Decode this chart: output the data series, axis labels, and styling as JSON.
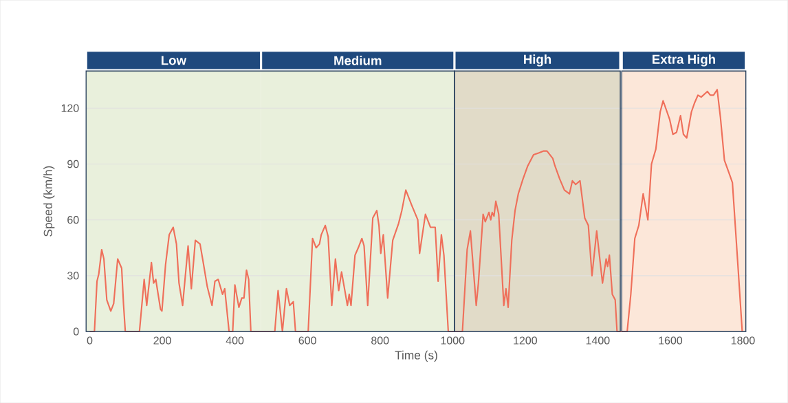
{
  "chart_data": {
    "type": "line",
    "xlabel": "Time (s)",
    "ylabel": "Speed (km/h)",
    "xlim": [
      -10,
      1810
    ],
    "ylim": [
      0,
      140
    ],
    "xticks": [
      0,
      200,
      400,
      600,
      800,
      1000,
      1200,
      1400,
      1600,
      1800
    ],
    "yticks": [
      0,
      30,
      60,
      90,
      120
    ],
    "grid": "y",
    "marker": "none",
    "line_style": "solid",
    "bands": [
      {
        "axis": "x",
        "from": -10,
        "to": 472,
        "label": "Low",
        "color": "#e9f0dc"
      },
      {
        "axis": "x",
        "from": 472,
        "to": 1005,
        "label": "Medium",
        "color": "#e9f0dc"
      },
      {
        "axis": "x",
        "from": 1005,
        "to": 1462,
        "label": "High",
        "color": "#e1dbc8"
      },
      {
        "axis": "x",
        "from": 1466,
        "to": 1808,
        "label": "Extra High",
        "color": "#fce7d9"
      }
    ],
    "series": [
      {
        "color": "#ef6f5a",
        "x": [
          0,
          13,
          20,
          25,
          33,
          39,
          47,
          58,
          66,
          77,
          88,
          93,
          98,
          137,
          150,
          157,
          170,
          176,
          182,
          195,
          199,
          209,
          219,
          230,
          239,
          246,
          256,
          271,
          280,
          291,
          304,
          312,
          324,
          337,
          345,
          354,
          366,
          372,
          384,
          394,
          400,
          411,
          419,
          425,
          432,
          438,
          444,
          510,
          519,
          531,
          542,
          551,
          561,
          567,
          602,
          614,
          624,
          633,
          638,
          649,
          657,
          667,
          677,
          686,
          694,
          703,
          710,
          715,
          720,
          731,
          740,
          750,
          756,
          766,
          780,
          791,
          797,
          802,
          809,
          821,
          835,
          851,
          860,
          871,
          887,
          904,
          909,
          925,
          939,
          952,
          960,
          969,
          976,
          988,
          1027,
          1040,
          1049,
          1065,
          1071,
          1084,
          1090,
          1100,
          1105,
          1109,
          1114,
          1119,
          1127,
          1141,
          1147,
          1153,
          1163,
          1172,
          1181,
          1194,
          1207,
          1223,
          1238,
          1251,
          1260,
          1276,
          1282,
          1295,
          1308,
          1322,
          1330,
          1339,
          1351,
          1364,
          1374,
          1384,
          1397,
          1413,
          1423,
          1427,
          1432,
          1440,
          1448,
          1453,
          1481,
          1491,
          1502,
          1513,
          1525,
          1538,
          1548,
          1560,
          1572,
          1580,
          1598,
          1607,
          1617,
          1628,
          1636,
          1645,
          1658,
          1667,
          1676,
          1685,
          1702,
          1710,
          1719,
          1729,
          1738,
          1749,
          1762,
          1771,
          1787,
          1798
        ],
        "values": [
          0,
          0,
          27,
          31,
          44,
          39,
          17,
          11,
          15,
          39,
          34,
          15,
          0,
          0,
          28,
          14,
          37,
          26,
          28,
          12,
          11,
          36,
          52,
          56,
          47,
          26,
          14,
          46,
          23,
          49,
          47,
          38,
          24,
          14,
          27,
          28,
          20,
          23,
          0,
          0,
          25,
          13,
          18,
          18,
          33,
          28,
          0,
          0,
          22,
          0,
          23,
          14,
          16,
          0,
          0,
          50,
          45,
          47,
          52,
          57,
          51,
          14,
          39,
          22,
          32,
          22,
          14,
          20,
          14,
          41,
          45,
          50,
          46,
          14,
          61,
          65,
          57,
          42,
          52,
          18,
          49,
          58,
          65,
          76,
          68,
          60,
          42,
          63,
          56,
          56,
          27,
          52,
          41,
          0,
          0,
          44,
          54,
          14,
          26,
          63,
          59,
          64,
          60,
          64,
          62,
          70,
          63,
          14,
          23,
          13,
          49,
          65,
          74,
          82,
          89,
          95,
          96,
          97,
          97,
          93,
          89,
          82,
          76,
          74,
          81,
          79,
          81,
          61,
          57,
          30,
          54,
          26,
          39,
          35,
          41,
          20,
          17,
          0,
          0,
          20,
          50,
          57,
          74,
          60,
          90,
          98,
          118,
          124,
          114,
          106,
          107,
          116,
          106,
          104,
          118,
          123,
          127,
          126,
          129,
          127,
          127,
          130,
          115,
          92,
          85,
          80,
          33,
          0
        ]
      }
    ]
  }
}
